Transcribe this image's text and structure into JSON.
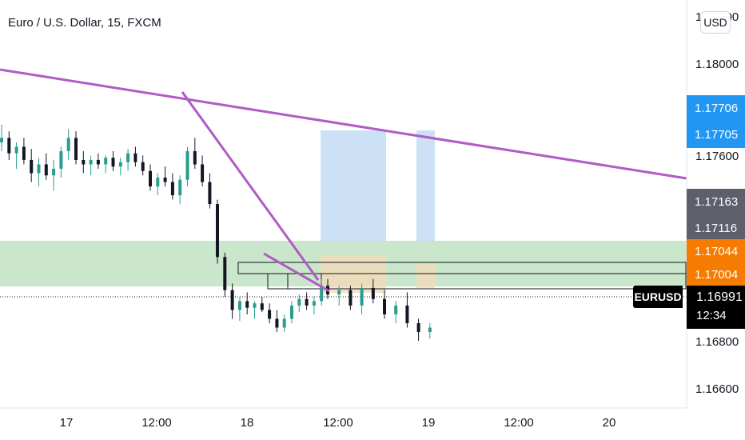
{
  "header": {
    "title": "Euro / U.S. Dollar, 15, FXCM",
    "currency_button": "USD"
  },
  "chart_data": {
    "type": "candlestick",
    "symbol": "EURUSD",
    "title": "Euro / U.S. Dollar, 15, FXCM",
    "ylim": [
      1.1655,
      1.182
    ],
    "y_ticks": [
      "1.18000",
      "1.17600",
      "1.16800",
      "1.16600"
    ],
    "top_partial_tick": "1.18200",
    "x_ticks": [
      "17",
      "12:00",
      "18",
      "12:00",
      "19",
      "12:00",
      "20"
    ],
    "last_price": "1.16991",
    "countdown": "12:34",
    "price_badges": [
      {
        "label": "1.17706",
        "color": "#2196f3"
      },
      {
        "label": "1.17705",
        "color": "#2196f3"
      },
      {
        "label": "1.17163",
        "color": "#5d606b"
      },
      {
        "label": "1.17116",
        "color": "#5d606b"
      },
      {
        "label": "1.17044",
        "color": "#f57c00"
      },
      {
        "label": "1.17004",
        "color": "#f57c00"
      }
    ],
    "colors": {
      "up": "#2a9d8f",
      "down": "#131722",
      "trendline": "#b05bc6",
      "zone": "#c8e6c9"
    },
    "series": [
      {
        "name": "EURUSD",
        "ohlc": [
          [
            1.177,
            1.1778,
            1.1766,
            1.1772
          ],
          [
            1.1772,
            1.1775,
            1.1762,
            1.1765
          ],
          [
            1.1765,
            1.177,
            1.1758,
            1.1768
          ],
          [
            1.1768,
            1.1772,
            1.176,
            1.1762
          ],
          [
            1.1762,
            1.1767,
            1.1752,
            1.1756
          ],
          [
            1.1756,
            1.1763,
            1.175,
            1.176
          ],
          [
            1.176,
            1.1765,
            1.1753,
            1.1755
          ],
          [
            1.1755,
            1.1762,
            1.1748,
            1.1758
          ],
          [
            1.1758,
            1.1768,
            1.1754,
            1.1766
          ],
          [
            1.1766,
            1.1776,
            1.1762,
            1.1772
          ],
          [
            1.1772,
            1.1775,
            1.176,
            1.1762
          ],
          [
            1.1762,
            1.1766,
            1.1756,
            1.176
          ],
          [
            1.176,
            1.1764,
            1.1755,
            1.1762
          ],
          [
            1.1762,
            1.1765,
            1.1758,
            1.176
          ],
          [
            1.176,
            1.1764,
            1.1756,
            1.1763
          ],
          [
            1.1763,
            1.1766,
            1.1757,
            1.1759
          ],
          [
            1.1759,
            1.1763,
            1.1755,
            1.1761
          ],
          [
            1.1761,
            1.1767,
            1.1757,
            1.1765
          ],
          [
            1.1765,
            1.1768,
            1.1759,
            1.1761
          ],
          [
            1.1761,
            1.1764,
            1.1755,
            1.1757
          ],
          [
            1.1757,
            1.176,
            1.1748,
            1.175
          ],
          [
            1.175,
            1.1756,
            1.1746,
            1.1754
          ],
          [
            1.1754,
            1.1759,
            1.175,
            1.1752
          ],
          [
            1.1752,
            1.1756,
            1.1744,
            1.1746
          ],
          [
            1.1746,
            1.1755,
            1.1742,
            1.1753
          ],
          [
            1.1753,
            1.1768,
            1.175,
            1.1766
          ],
          [
            1.1766,
            1.1772,
            1.1758,
            1.176
          ],
          [
            1.176,
            1.1764,
            1.175,
            1.1752
          ],
          [
            1.1752,
            1.1756,
            1.174,
            1.1742
          ],
          [
            1.1742,
            1.1744,
            1.1715,
            1.1718
          ],
          [
            1.1718,
            1.172,
            1.17,
            1.1703
          ],
          [
            1.1703,
            1.1706,
            1.169,
            1.1694
          ],
          [
            1.1694,
            1.17,
            1.1689,
            1.1698
          ],
          [
            1.1698,
            1.1702,
            1.1692,
            1.1695
          ],
          [
            1.1695,
            1.1698,
            1.169,
            1.1697
          ],
          [
            1.1697,
            1.17,
            1.1693,
            1.1694
          ],
          [
            1.1694,
            1.1697,
            1.1688,
            1.169
          ],
          [
            1.169,
            1.1694,
            1.1684,
            1.1686
          ],
          [
            1.1686,
            1.1692,
            1.1684,
            1.169
          ],
          [
            1.169,
            1.1698,
            1.1688,
            1.1696
          ],
          [
            1.1696,
            1.1701,
            1.1693,
            1.1699
          ],
          [
            1.1699,
            1.1702,
            1.1694,
            1.1696
          ],
          [
            1.1696,
            1.17,
            1.1692,
            1.1698
          ],
          [
            1.1698,
            1.1708,
            1.1696,
            1.1705
          ],
          [
            1.1705,
            1.1708,
            1.1699,
            1.1701
          ],
          [
            1.1701,
            1.1705,
            1.1696,
            1.1703
          ],
          [
            1.1703,
            1.1705,
            1.1694,
            1.1696
          ],
          [
            1.1696,
            1.1706,
            1.1692,
            1.1704
          ],
          [
            1.1704,
            1.1708,
            1.1697,
            1.1699
          ],
          [
            1.1699,
            1.1703,
            1.169,
            1.1692
          ],
          [
            1.1692,
            1.1698,
            1.1688,
            1.1696
          ],
          [
            1.1696,
            1.1702,
            1.1686,
            1.1688
          ],
          [
            1.1688,
            1.169,
            1.168,
            1.1684
          ],
          [
            1.1684,
            1.1688,
            1.1681,
            1.1686
          ]
        ]
      }
    ]
  },
  "legend_badge": "EURUSD"
}
